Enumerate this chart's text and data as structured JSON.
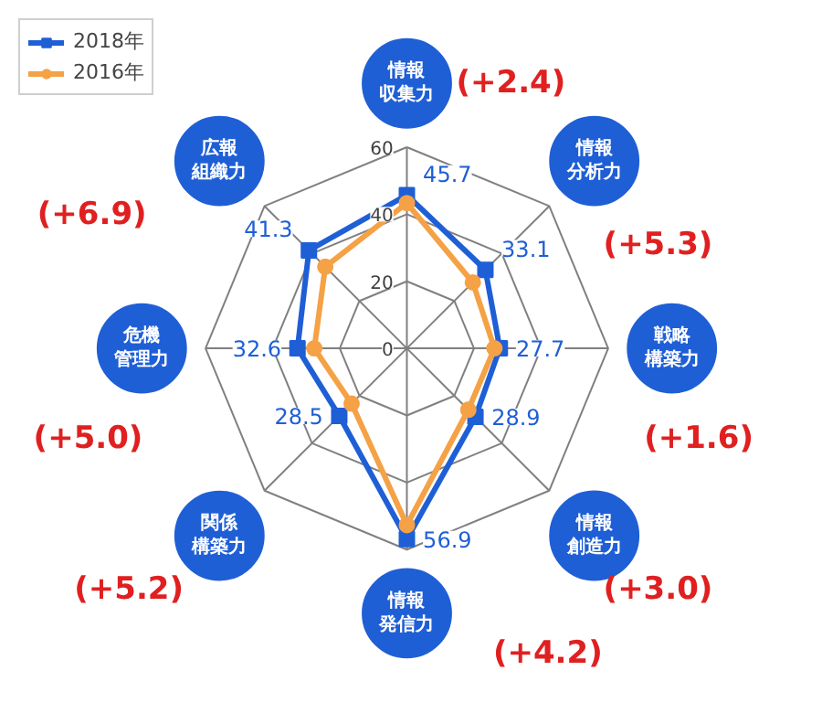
{
  "chart_data": {
    "type": "radar",
    "categories": [
      "情報収集力",
      "情報分析力",
      "戦略構築力",
      "情報創造力",
      "情報発信力",
      "関係構築力",
      "危機管理力",
      "広報組織力"
    ],
    "series": [
      {
        "name": "2018年",
        "color": "#1f5fd6",
        "values": [
          45.7,
          33.1,
          27.7,
          28.9,
          56.9,
          28.5,
          32.6,
          41.3
        ],
        "value_labels": [
          "45.7",
          "33.1",
          "27.7",
          "28.9",
          "56.9",
          "28.5",
          "32.6",
          "41.3"
        ],
        "marker": "square"
      },
      {
        "name": "2016年",
        "color": "#f5a146",
        "values": [
          43.3,
          27.8,
          26.1,
          25.9,
          52.7,
          23.3,
          27.6,
          34.4
        ],
        "marker": "circle"
      }
    ],
    "ylim": [
      0,
      60
    ],
    "yticks": [
      0,
      20,
      40,
      60
    ],
    "legend": "top left",
    "annotations": [
      "(+2.4)",
      "(+5.3)",
      "(+1.6)",
      "(+3.0)",
      "(+4.2)",
      "(+5.2)",
      "(+5.0)",
      "(+6.9)"
    ]
  }
}
